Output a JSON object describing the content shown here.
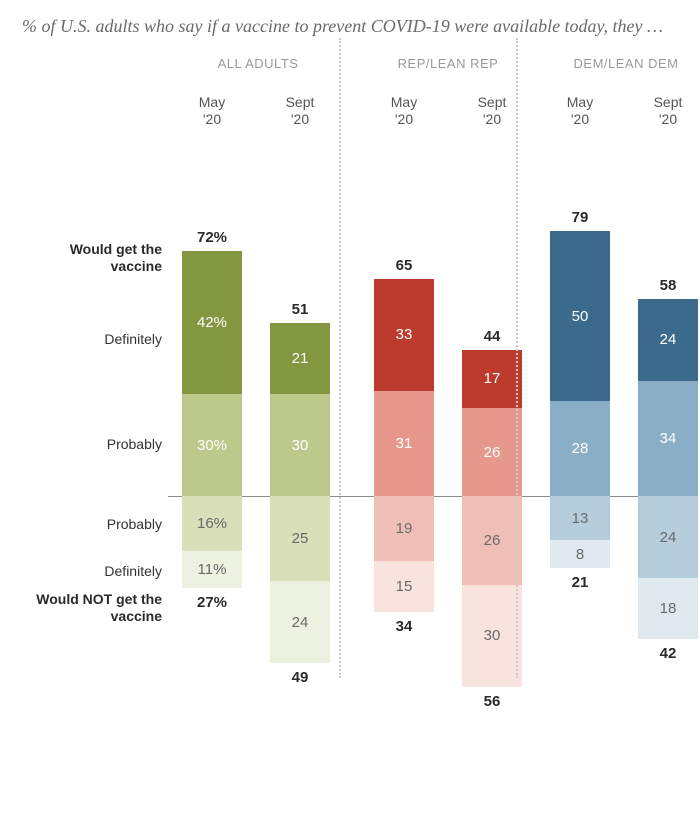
{
  "title": "% of U.S. adults who say if a vaccine to prevent COVID-19 were available today, they …",
  "rowLabels": {
    "totalGet": "Would get the vaccine",
    "definitelyGet": "Definitely",
    "probablyGet": "Probably",
    "probablyNot": "Probably",
    "definitelyNot": "Definitely",
    "totalNot": "Would NOT get the vaccine"
  },
  "layout": {
    "unitPx": 3.4,
    "midlineTop": 355,
    "labelWidth": 150,
    "barWidth": 60,
    "divider1X": 339,
    "divider2X": 516,
    "dividerTop": 0,
    "dividerHeight": 640,
    "columnPositions": [
      164,
      252,
      356,
      444,
      532,
      620
    ],
    "groupHeaderPositions": [
      160,
      350,
      528
    ],
    "rowLabelY": {
      "totalGet": 100,
      "definitelyGet": 190,
      "probablyGet": 295,
      "probablyNot": 375,
      "definitelyNot": 422,
      "totalNot": 450
    }
  },
  "palettes": {
    "all": {
      "defGet": "#82973f",
      "probGet": "#bcc98b",
      "probNot": "#d8dfb9",
      "defNot": "#edf1df"
    },
    "rep": {
      "defGet": "#bd3b2c",
      "probGet": "#e6988c",
      "probNot": "#efbfb7",
      "defNot": "#f8e3df"
    },
    "dem": {
      "defGet": "#3b6a8c",
      "probGet": "#89aec5",
      "probNot": "#b6cddb",
      "defNot": "#dfe9ef"
    }
  },
  "groups": [
    {
      "label": "ALL ADULTS",
      "paletteKey": "all",
      "columns": [
        {
          "time1": "May",
          "time2": "'20",
          "totalGet": "72%",
          "defGet": "42%",
          "probGet": "30%",
          "probNot": "16%",
          "defNot": "11%",
          "totalNot": "27%",
          "v": {
            "defGet": 42,
            "probGet": 30,
            "probNot": 16,
            "defNot": 11
          }
        },
        {
          "time1": "Sept",
          "time2": "'20",
          "totalGet": "51",
          "defGet": "21",
          "probGet": "30",
          "probNot": "25",
          "defNot": "24",
          "totalNot": "49",
          "v": {
            "defGet": 21,
            "probGet": 30,
            "probNot": 25,
            "defNot": 24
          }
        }
      ]
    },
    {
      "label": "REP/LEAN REP",
      "paletteKey": "rep",
      "columns": [
        {
          "time1": "May",
          "time2": "'20",
          "totalGet": "65",
          "defGet": "33",
          "probGet": "31",
          "probNot": "19",
          "defNot": "15",
          "totalNot": "34",
          "v": {
            "defGet": 33,
            "probGet": 31,
            "probNot": 19,
            "defNot": 15
          }
        },
        {
          "time1": "Sept",
          "time2": "'20",
          "totalGet": "44",
          "defGet": "17",
          "probGet": "26",
          "probNot": "26",
          "defNot": "30",
          "totalNot": "56",
          "v": {
            "defGet": 17,
            "probGet": 26,
            "probNot": 26,
            "defNot": 30
          }
        }
      ]
    },
    {
      "label": "DEM/LEAN DEM",
      "paletteKey": "dem",
      "columns": [
        {
          "time1": "May",
          "time2": "'20",
          "totalGet": "79",
          "defGet": "50",
          "probGet": "28",
          "probNot": "13",
          "defNot": "8",
          "totalNot": "21",
          "v": {
            "defGet": 50,
            "probGet": 28,
            "probNot": 13,
            "defNot": 8
          }
        },
        {
          "time1": "Sept",
          "time2": "'20",
          "totalGet": "58",
          "defGet": "24",
          "probGet": "34",
          "probNot": "24",
          "defNot": "18",
          "totalNot": "42",
          "v": {
            "defGet": 24,
            "probGet": 34,
            "probNot": 24,
            "defNot": 18
          }
        }
      ]
    }
  ]
}
